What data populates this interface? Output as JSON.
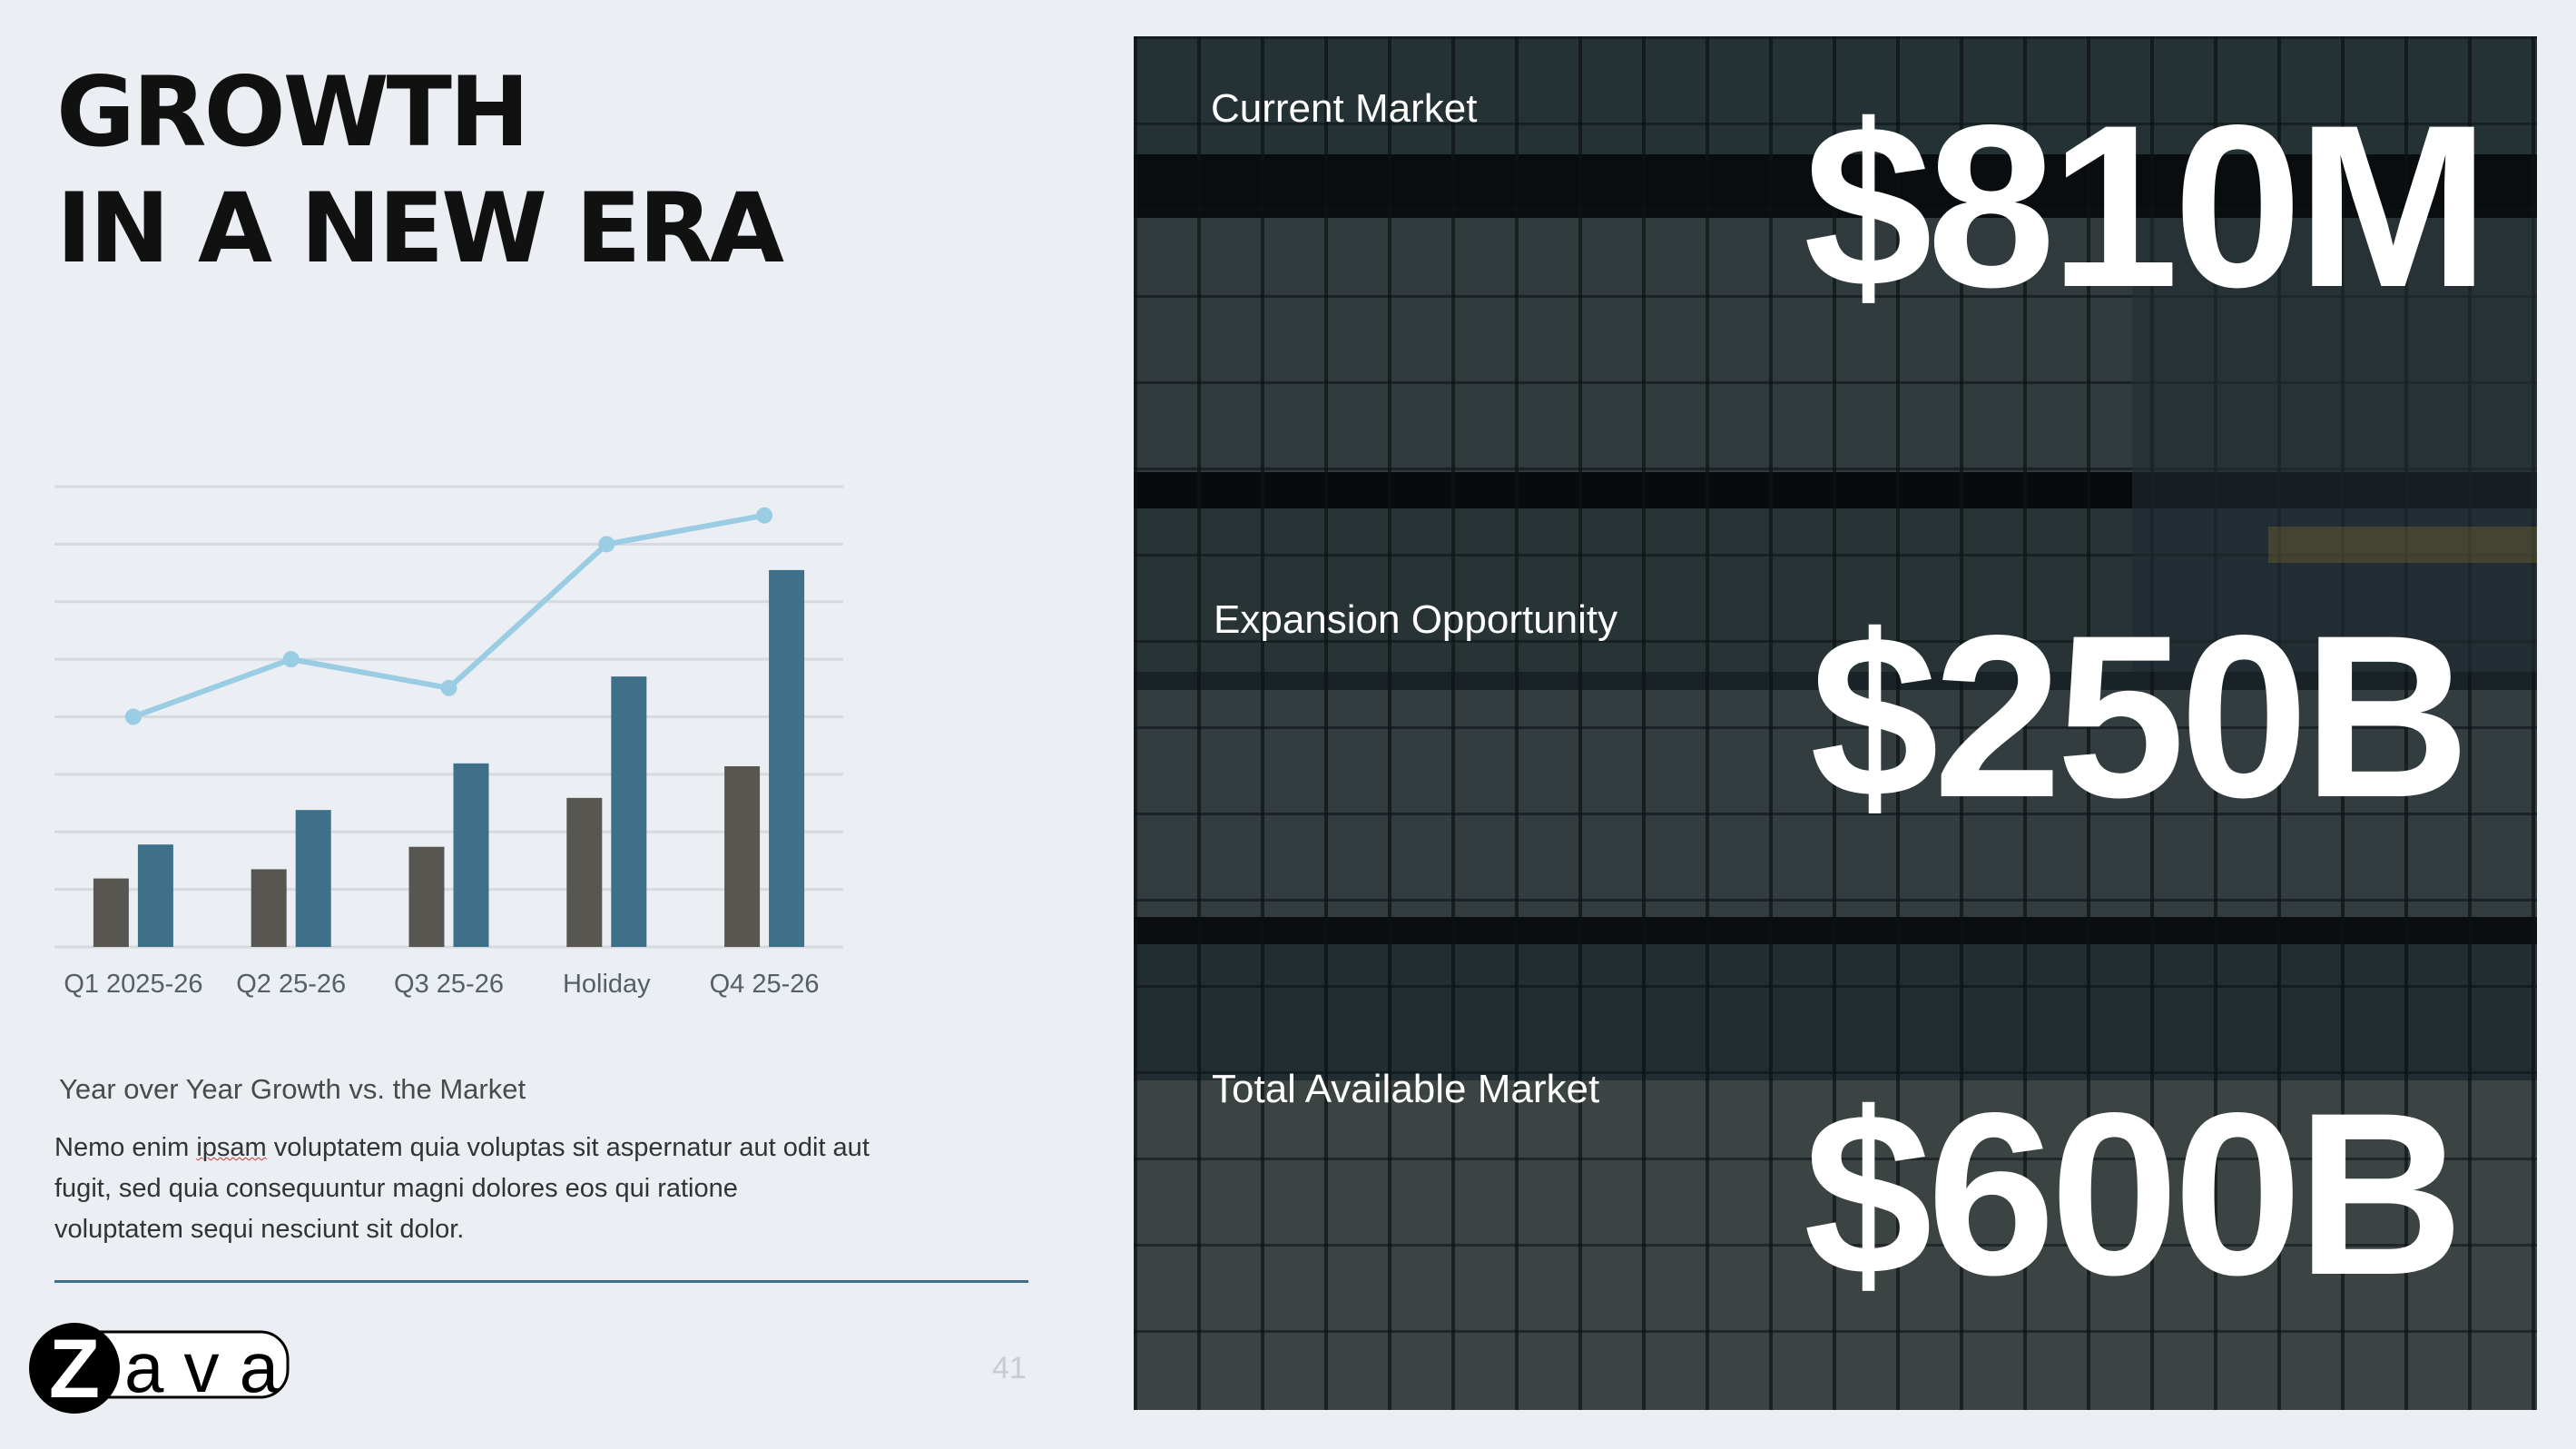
{
  "title": {
    "line1": "GROWTH",
    "line2": "IN A NEW ERA"
  },
  "chart_data": {
    "type": "bar",
    "categories": [
      "Q1 2025-26",
      "Q2 25-26",
      "Q3 25-26",
      "Holiday",
      "Q4 25-26"
    ],
    "series": [
      {
        "type": "bar",
        "values": [
          1.19,
          1.35,
          1.74,
          2.59,
          3.14
        ],
        "color": "#575651"
      },
      {
        "type": "bar",
        "values": [
          1.78,
          2.38,
          3.19,
          4.7,
          6.55
        ],
        "color": "#3e7089"
      },
      {
        "type": "line",
        "values": [
          4.0,
          5.0,
          4.5,
          7.0,
          7.5
        ],
        "color": "#9acde3"
      }
    ],
    "ylim": [
      0,
      8
    ],
    "grid": true,
    "gridline_count": 9
  },
  "chart_caption": "Year over Year Growth vs. the Market",
  "body": {
    "before": "Nemo enim ",
    "misspelled": "ipsam",
    "after": " voluptatem quia voluptas sit aspernatur aut odit aut fugit, sed quia consequuntur magni dolores eos qui ratione voluptatem sequi nesciunt sit dolor."
  },
  "logo": {
    "text": "Zava"
  },
  "page_number": "41",
  "metrics": [
    {
      "label": "Current Market",
      "value": "$810M"
    },
    {
      "label": "Expansion Opportunity",
      "value": "$250B"
    },
    {
      "label": "Total Available Market",
      "value": "$600B"
    }
  ],
  "colors": {
    "background": "#ebeff4",
    "accent": "#3e7089",
    "bar_gray": "#575651",
    "line": "#9acde3"
  }
}
